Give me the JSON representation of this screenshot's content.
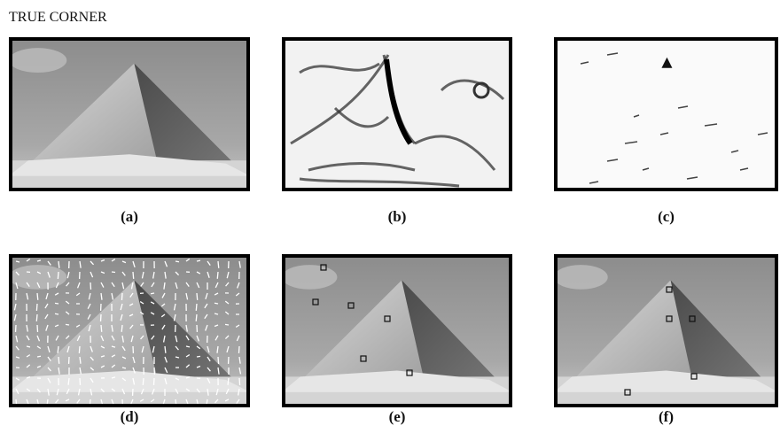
{
  "header": {
    "title": "TRUE CORNER"
  },
  "panels": [
    {
      "label": "(a)"
    },
    {
      "label": "(b)"
    },
    {
      "label": "(c)"
    },
    {
      "label": "(d)"
    },
    {
      "label": "(e)"
    },
    {
      "label": "(f)"
    }
  ]
}
